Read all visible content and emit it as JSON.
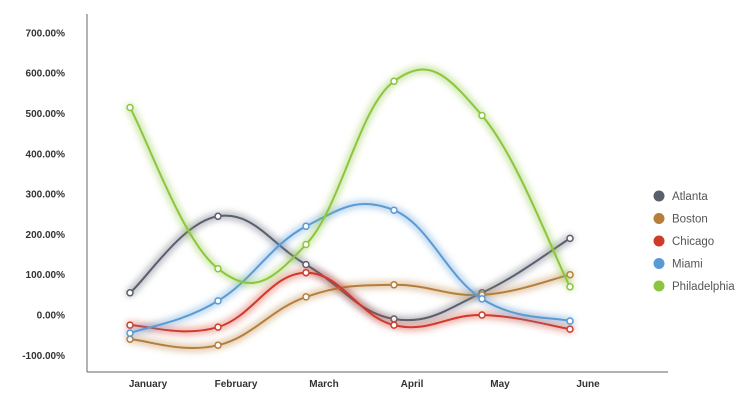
{
  "chart_data": {
    "type": "line",
    "smooth": true,
    "categories": [
      "January",
      "February",
      "March",
      "April",
      "May",
      "June"
    ],
    "y_ticks": [
      "-100.00%",
      "0.00%",
      "100.00%",
      "200.00%",
      "300.00%",
      "400.00%",
      "500.00%",
      "600.00%",
      "700.00%"
    ],
    "ylim": [
      -110,
      740
    ],
    "y_unit": "%",
    "grid": false,
    "legend_position": "right",
    "series": [
      {
        "name": "Atlanta",
        "color": "#5a5f6e",
        "values": [
          55,
          245,
          125,
          -10,
          55,
          190
        ]
      },
      {
        "name": "Boston",
        "color": "#b77d3a",
        "values": [
          -60,
          -75,
          45,
          75,
          50,
          100
        ]
      },
      {
        "name": "Chicago",
        "color": "#d03a2a",
        "values": [
          -25,
          -30,
          105,
          -25,
          0,
          -35
        ]
      },
      {
        "name": "Miami",
        "color": "#5b9bd5",
        "values": [
          -45,
          35,
          220,
          260,
          40,
          -15
        ]
      },
      {
        "name": "Philadelphia",
        "color": "#8cc63f",
        "values": [
          515,
          115,
          175,
          580,
          495,
          70
        ]
      }
    ]
  }
}
